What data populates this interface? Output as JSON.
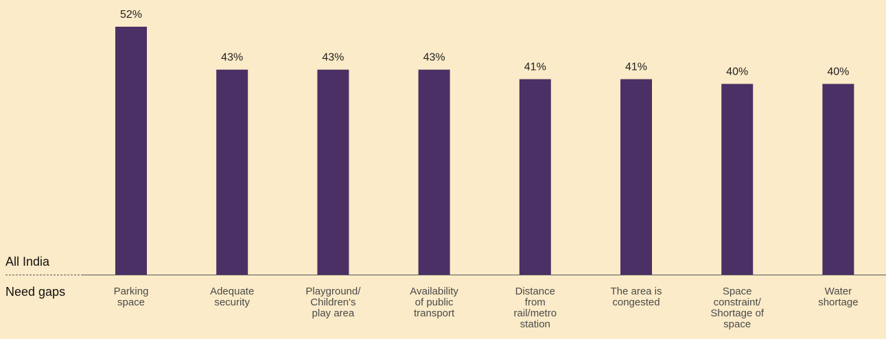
{
  "chart_data": {
    "type": "bar",
    "row_labels": {
      "group": "All India",
      "category_axis": "Need gaps"
    },
    "categories": [
      [
        "Parking",
        "space"
      ],
      [
        "Adequate",
        "security"
      ],
      [
        "Playground/",
        "Children's",
        "play area"
      ],
      [
        "Availability",
        "of public",
        "transport"
      ],
      [
        "Distance",
        "from",
        "rail/metro",
        "station"
      ],
      [
        "The area is",
        "congested"
      ],
      [
        "Space",
        "constraint/",
        "Shortage of",
        "space"
      ],
      [
        "Water",
        "shortage"
      ]
    ],
    "values": [
      52,
      43,
      43,
      43,
      41,
      41,
      40,
      40
    ],
    "value_labels": [
      "52%",
      "43%",
      "43%",
      "43%",
      "41%",
      "41%",
      "40%",
      "40%"
    ],
    "unit": "%",
    "ylim": [
      0,
      55
    ],
    "grid": false,
    "legend": "none",
    "colors": {
      "bar": "#4b3065",
      "background": "#fbebc8",
      "axis": "#555555"
    }
  }
}
